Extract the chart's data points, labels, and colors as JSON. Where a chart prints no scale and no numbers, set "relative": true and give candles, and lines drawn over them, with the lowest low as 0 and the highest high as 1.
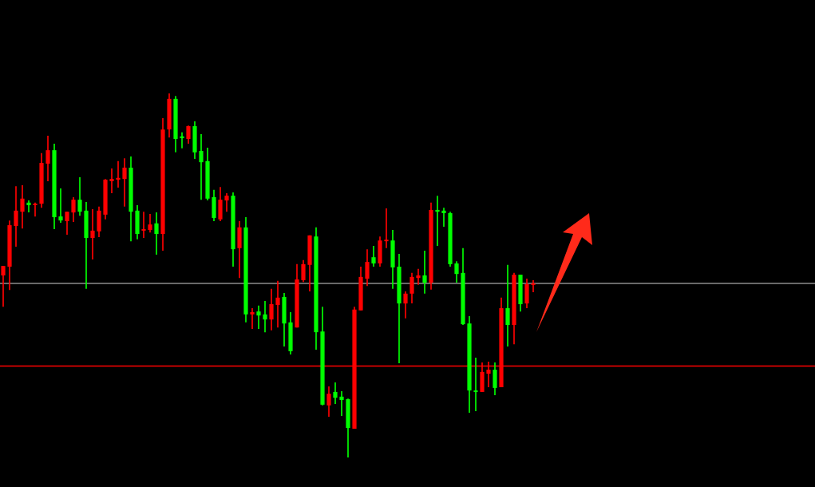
{
  "chart_data": {
    "type": "candlestick",
    "relative": true,
    "categories": [
      null,
      null,
      null,
      null,
      null,
      null,
      null,
      null,
      null,
      null,
      null,
      null,
      null,
      null,
      null,
      null,
      null,
      null,
      null,
      null,
      null,
      null,
      null,
      null,
      null,
      null,
      null,
      null,
      null,
      null,
      null,
      null,
      null,
      null,
      null,
      null,
      null,
      null,
      null,
      null,
      null,
      null,
      null,
      null,
      null,
      null,
      null,
      null,
      null,
      null,
      null,
      null,
      null,
      null,
      null,
      null,
      null,
      null,
      null,
      null,
      null,
      null,
      null,
      null,
      null,
      null,
      null,
      null,
      null,
      null,
      null,
      null,
      null,
      null,
      null,
      null,
      null,
      null,
      null,
      null,
      null,
      null,
      null,
      null
    ],
    "ohlc": [
      [
        0.5,
        0.526,
        0.414,
        0.526
      ],
      [
        0.524,
        0.651,
        0.46,
        0.638
      ],
      [
        0.636,
        0.745,
        0.579,
        0.678
      ],
      [
        0.675,
        0.748,
        0.629,
        0.711
      ],
      [
        0.7,
        0.706,
        0.673,
        0.693
      ],
      [
        0.693,
        0.7,
        0.662,
        0.697
      ],
      [
        0.697,
        0.836,
        0.686,
        0.809
      ],
      [
        0.807,
        0.884,
        0.759,
        0.844
      ],
      [
        0.844,
        0.862,
        0.627,
        0.66
      ],
      [
        0.662,
        0.739,
        0.645,
        0.651
      ],
      [
        0.649,
        0.675,
        0.612,
        0.675
      ],
      [
        0.673,
        0.715,
        0.647,
        0.708
      ],
      [
        0.708,
        0.77,
        0.664,
        0.675
      ],
      [
        0.678,
        0.702,
        0.463,
        0.603
      ],
      [
        0.603,
        0.682,
        0.544,
        0.623
      ],
      [
        0.621,
        0.689,
        0.605,
        0.678
      ],
      [
        0.667,
        0.765,
        0.654,
        0.763
      ],
      [
        0.759,
        0.794,
        0.726,
        0.765
      ],
      [
        0.763,
        0.814,
        0.741,
        0.768
      ],
      [
        0.765,
        0.822,
        0.689,
        0.796
      ],
      [
        0.796,
        0.827,
        0.594,
        0.675
      ],
      [
        0.678,
        0.693,
        0.599,
        0.614
      ],
      [
        0.623,
        0.675,
        0.603,
        0.627
      ],
      [
        0.625,
        0.669,
        0.618,
        0.64
      ],
      [
        0.643,
        0.673,
        0.557,
        0.614
      ],
      [
        0.614,
        0.932,
        0.568,
        0.901
      ],
      [
        0.901,
        1.0,
        0.879,
        0.985
      ],
      [
        0.985,
        0.993,
        0.838,
        0.875
      ],
      [
        0.882,
        0.893,
        0.849,
        0.877
      ],
      [
        0.875,
        0.912,
        0.862,
        0.91
      ],
      [
        0.91,
        0.923,
        0.82,
        0.838
      ],
      [
        0.842,
        0.888,
        0.708,
        0.811
      ],
      [
        0.814,
        0.851,
        0.706,
        0.711
      ],
      [
        0.715,
        0.735,
        0.649,
        0.658
      ],
      [
        0.654,
        0.743,
        0.649,
        0.708
      ],
      [
        0.706,
        0.726,
        0.675,
        0.719
      ],
      [
        0.719,
        0.728,
        0.524,
        0.572
      ],
      [
        0.575,
        0.649,
        0.493,
        0.632
      ],
      [
        0.632,
        0.66,
        0.371,
        0.393
      ],
      [
        0.393,
        0.41,
        0.353,
        0.399
      ],
      [
        0.401,
        0.417,
        0.353,
        0.39
      ],
      [
        0.393,
        0.43,
        0.344,
        0.379
      ],
      [
        0.379,
        0.463,
        0.349,
        0.421
      ],
      [
        0.419,
        0.485,
        0.357,
        0.439
      ],
      [
        0.441,
        0.452,
        0.305,
        0.368
      ],
      [
        0.371,
        0.399,
        0.283,
        0.292
      ],
      [
        0.357,
        0.531,
        0.357,
        0.489
      ],
      [
        0.487,
        0.542,
        0.482,
        0.531
      ],
      [
        0.529,
        0.61,
        0.456,
        0.61
      ],
      [
        0.607,
        0.632,
        0.296,
        0.344
      ],
      [
        0.346,
        0.414,
        0.143,
        0.145
      ],
      [
        0.143,
        0.195,
        0.112,
        0.175
      ],
      [
        0.18,
        0.206,
        0.147,
        0.164
      ],
      [
        0.167,
        0.182,
        0.114,
        0.158
      ],
      [
        0.16,
        0.162,
        0.0,
        0.081
      ],
      [
        0.079,
        0.414,
        0.079,
        0.406
      ],
      [
        0.404,
        0.524,
        0.404,
        0.496
      ],
      [
        0.491,
        0.572,
        0.471,
        0.537
      ],
      [
        0.55,
        0.581,
        0.524,
        0.533
      ],
      [
        0.533,
        0.607,
        0.524,
        0.596
      ],
      [
        0.594,
        0.684,
        0.575,
        0.596
      ],
      [
        0.596,
        0.625,
        0.463,
        0.522
      ],
      [
        0.524,
        0.559,
        0.259,
        0.423
      ],
      [
        0.423,
        0.456,
        0.382,
        0.45
      ],
      [
        0.45,
        0.507,
        0.423,
        0.496
      ],
      [
        0.493,
        0.518,
        0.474,
        0.5
      ],
      [
        0.5,
        0.568,
        0.45,
        0.48
      ],
      [
        0.48,
        0.7,
        0.461,
        0.68
      ],
      [
        0.68,
        0.719,
        0.581,
        0.675
      ],
      [
        0.678,
        0.686,
        0.634,
        0.671
      ],
      [
        0.671,
        0.675,
        0.524,
        0.531
      ],
      [
        0.533,
        0.539,
        0.48,
        0.504
      ],
      [
        0.507,
        0.575,
        0.364,
        0.366
      ],
      [
        0.368,
        0.388,
        0.123,
        0.184
      ],
      [
        0.184,
        0.274,
        0.127,
        0.18
      ],
      [
        0.18,
        0.261,
        0.18,
        0.235
      ],
      [
        0.23,
        0.263,
        0.193,
        0.241
      ],
      [
        0.241,
        0.261,
        0.171,
        0.191
      ],
      [
        0.193,
        0.439,
        0.193,
        0.41
      ],
      [
        0.41,
        0.529,
        0.305,
        0.364
      ],
      [
        0.364,
        0.507,
        0.311,
        0.502
      ],
      [
        0.502,
        0.502,
        0.401,
        0.421
      ],
      [
        0.423,
        0.491,
        0.41,
        0.476
      ],
      [
        0.474,
        0.487,
        0.454,
        0.478
      ]
    ],
    "colors": [
      "#ff0000",
      "#ff0000",
      "#ff0000",
      "#ff0000",
      "#00ff00",
      "#ff0000",
      "#ff0000",
      "#ff0000",
      "#00ff00",
      "#00ff00",
      "#ff0000",
      "#ff0000",
      "#00ff00",
      "#00ff00",
      "#ff0000",
      "#ff0000",
      "#ff0000",
      "#ff0000",
      "#ff0000",
      "#ff0000",
      "#00ff00",
      "#00ff00",
      "#ff0000",
      "#ff0000",
      "#00ff00",
      "#ff0000",
      "#ff0000",
      "#00ff00",
      "#00ff00",
      "#ff0000",
      "#00ff00",
      "#00ff00",
      "#00ff00",
      "#00ff00",
      "#ff0000",
      "#ff0000",
      "#00ff00",
      "#ff0000",
      "#00ff00",
      "#ff0000",
      "#00ff00",
      "#00ff00",
      "#ff0000",
      "#ff0000",
      "#00ff00",
      "#00ff00",
      "#ff0000",
      "#ff0000",
      "#ff0000",
      "#00ff00",
      "#00ff00",
      "#ff0000",
      "#00ff00",
      "#00ff00",
      "#00ff00",
      "#ff0000",
      "#ff0000",
      "#ff0000",
      "#00ff00",
      "#ff0000",
      "#ff0000",
      "#00ff00",
      "#00ff00",
      "#ff0000",
      "#ff0000",
      "#ff0000",
      "#00ff00",
      "#ff0000",
      "#00ff00",
      "#00ff00",
      "#00ff00",
      "#00ff00",
      "#00ff00",
      "#00ff00",
      "#00ff00",
      "#ff0000",
      "#ff0000",
      "#00ff00",
      "#ff0000",
      "#00ff00",
      "#ff0000",
      "#00ff00",
      "#ff0000",
      "#ff0000"
    ],
    "ref_lines": [
      {
        "axis": "y",
        "value": 0.478,
        "color": "#8c8c8c"
      },
      {
        "axis": "y",
        "value": 0.251,
        "color": "#ff0000"
      }
    ]
  }
}
